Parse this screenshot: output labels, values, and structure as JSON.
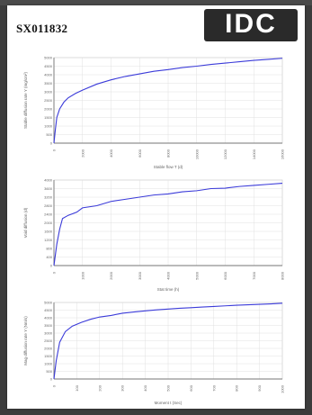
{
  "header": {
    "title": "SX011832",
    "logo_text": "IDC"
  },
  "chart_data": [
    {
      "type": "line",
      "xlabel": "Stable flow T (d)",
      "ylabel": "Stable diffusion rate Y (mg/cm²)",
      "x_ticks": [
        "0",
        "2000",
        "4000",
        "6000",
        "8000",
        "10000",
        "12000",
        "14000",
        "16000"
      ],
      "y_ticks": [
        "0",
        "500",
        "1000",
        "1500",
        "2000",
        "2500",
        "3000",
        "3500",
        "4000",
        "4500",
        "5000"
      ],
      "xlim": [
        0,
        16000
      ],
      "ylim": [
        0,
        5000
      ],
      "series": [
        {
          "color": "#3b3bd9",
          "points": [
            [
              0,
              0
            ],
            [
              100,
              800
            ],
            [
              200,
              1500
            ],
            [
              400,
              2000
            ],
            [
              700,
              2400
            ],
            [
              1000,
              2650
            ],
            [
              1500,
              2900
            ],
            [
              2000,
              3100
            ],
            [
              3000,
              3450
            ],
            [
              4000,
              3700
            ],
            [
              5000,
              3900
            ],
            [
              6000,
              4050
            ],
            [
              7000,
              4200
            ],
            [
              8000,
              4300
            ],
            [
              9000,
              4420
            ],
            [
              10000,
              4500
            ],
            [
              11000,
              4600
            ],
            [
              12000,
              4680
            ],
            [
              13000,
              4760
            ],
            [
              14000,
              4840
            ],
            [
              15000,
              4900
            ],
            [
              16000,
              4960
            ]
          ]
        }
      ],
      "grid": true
    },
    {
      "type": "line",
      "xlabel": "Stat time (h)",
      "ylabel": "Void diffusion (d)",
      "x_ticks": [
        "0",
        "1000",
        "2000",
        "3000",
        "4000",
        "5000",
        "6000",
        "7000",
        "8000"
      ],
      "y_ticks": [
        "0",
        "400",
        "800",
        "1200",
        "1600",
        "2000",
        "2400",
        "2800",
        "3200",
        "3600",
        "4000"
      ],
      "xlim": [
        0,
        8000
      ],
      "ylim": [
        0,
        4000
      ],
      "series": [
        {
          "color": "#3b3bd9",
          "points": [
            [
              0,
              0
            ],
            [
              100,
              1000
            ],
            [
              200,
              1700
            ],
            [
              300,
              2200
            ],
            [
              500,
              2350
            ],
            [
              800,
              2500
            ],
            [
              1000,
              2700
            ],
            [
              1500,
              2800
            ],
            [
              2000,
              3000
            ],
            [
              2500,
              3100
            ],
            [
              3000,
              3200
            ],
            [
              3500,
              3300
            ],
            [
              4000,
              3350
            ],
            [
              4500,
              3450
            ],
            [
              5000,
              3500
            ],
            [
              5500,
              3600
            ],
            [
              6000,
              3620
            ],
            [
              6500,
              3700
            ],
            [
              7000,
              3750
            ],
            [
              7500,
              3800
            ],
            [
              8000,
              3850
            ]
          ]
        }
      ],
      "grid": true
    },
    {
      "type": "line",
      "xlabel": "Moment t (Sec)",
      "ylabel": "Mag diffusion rate Y (Nm/s)",
      "x_ticks": [
        "0",
        "100",
        "200",
        "300",
        "400",
        "500",
        "600",
        "700",
        "800",
        "900",
        "1000"
      ],
      "y_ticks": [
        "0",
        "500",
        "1000",
        "1500",
        "2000",
        "2500",
        "3000",
        "3500",
        "4000",
        "4500",
        "5000"
      ],
      "xlim": [
        0,
        1000
      ],
      "ylim": [
        0,
        5000
      ],
      "series": [
        {
          "color": "#3b3bd9",
          "points": [
            [
              0,
              0
            ],
            [
              10,
              1200
            ],
            [
              25,
              2400
            ],
            [
              50,
              3100
            ],
            [
              80,
              3450
            ],
            [
              120,
              3700
            ],
            [
              160,
              3900
            ],
            [
              200,
              4050
            ],
            [
              250,
              4150
            ],
            [
              300,
              4300
            ],
            [
              350,
              4380
            ],
            [
              400,
              4450
            ],
            [
              450,
              4520
            ],
            [
              500,
              4570
            ],
            [
              550,
              4620
            ],
            [
              600,
              4660
            ],
            [
              650,
              4700
            ],
            [
              700,
              4740
            ],
            [
              750,
              4780
            ],
            [
              800,
              4820
            ],
            [
              850,
              4850
            ],
            [
              900,
              4880
            ],
            [
              950,
              4910
            ],
            [
              1000,
              4950
            ]
          ]
        }
      ],
      "grid": true
    }
  ]
}
